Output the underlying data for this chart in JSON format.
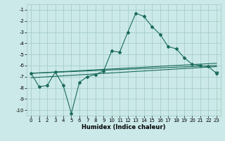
{
  "xlabel": "Humidex (Indice chaleur)",
  "xlim": [
    -0.5,
    23.5
  ],
  "ylim": [
    -10.5,
    -0.5
  ],
  "yticks": [
    -10,
    -9,
    -8,
    -7,
    -6,
    -5,
    -4,
    -3,
    -2,
    -1
  ],
  "xticks": [
    0,
    1,
    2,
    3,
    4,
    5,
    6,
    7,
    8,
    9,
    10,
    11,
    12,
    13,
    14,
    15,
    16,
    17,
    18,
    19,
    20,
    21,
    22,
    23
  ],
  "bg_color": "#cbe9e9",
  "grid_color": "#a0c8c0",
  "line_color": "#1a6b5a",
  "line1_x": [
    0,
    1,
    2,
    3,
    4,
    5,
    6,
    7,
    8,
    9,
    10,
    11,
    12,
    13,
    14,
    15,
    16,
    17,
    18,
    19,
    20,
    21,
    22,
    23
  ],
  "line1_y": [
    -6.7,
    -7.9,
    -7.8,
    -6.6,
    -7.8,
    -10.3,
    -7.5,
    -7.0,
    -6.8,
    -6.5,
    -4.7,
    -4.8,
    -3.0,
    -1.3,
    -1.6,
    -2.5,
    -3.2,
    -4.3,
    -4.5,
    -5.3,
    -5.9,
    -6.0,
    -6.1,
    -6.7
  ],
  "line2_x": [
    0,
    23
  ],
  "line2_y": [
    -6.7,
    -5.8
  ],
  "line3_x": [
    0,
    23
  ],
  "line3_y": [
    -6.7,
    -6.0
  ],
  "line4_x": [
    0,
    23
  ],
  "line4_y": [
    -7.1,
    -6.1
  ],
  "marker_symbol": "D",
  "marker_size": 2.0,
  "xlabel_fontsize": 6,
  "tick_fontsize": 5
}
